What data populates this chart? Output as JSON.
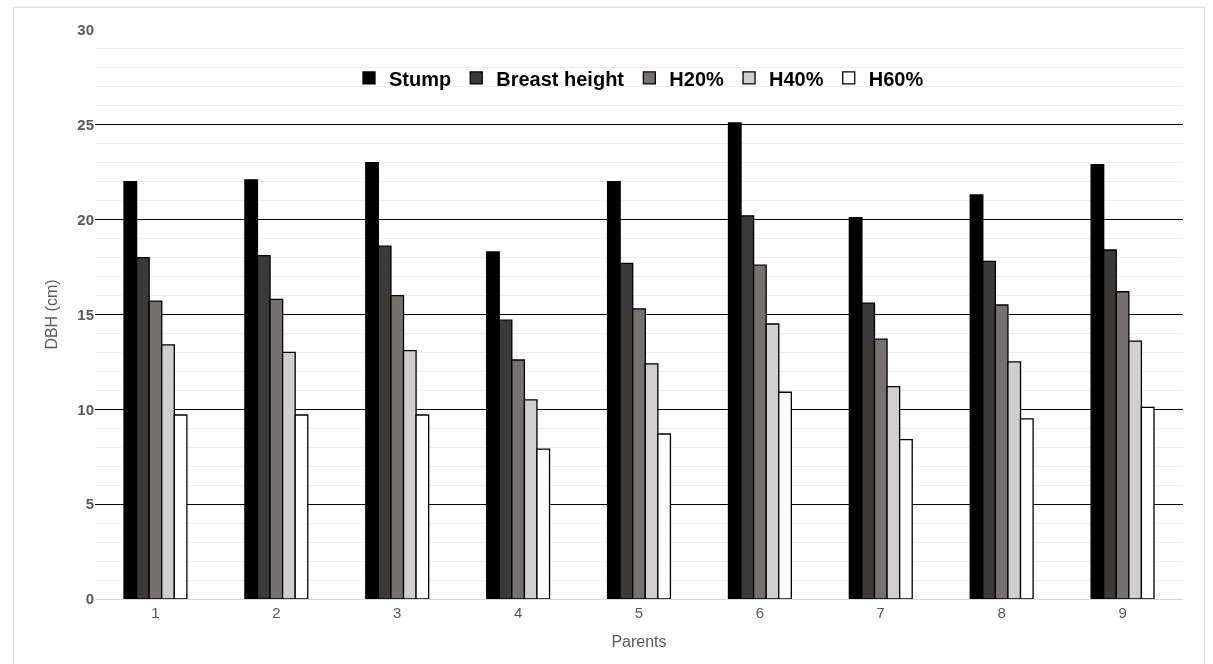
{
  "chart_data": {
    "type": "bar",
    "xlabel": "Parents",
    "ylabel": "DBH (cm)",
    "categories": [
      "1",
      "2",
      "3",
      "4",
      "5",
      "6",
      "7",
      "8",
      "9"
    ],
    "series": [
      {
        "name": "Stump",
        "color": "#000000",
        "values": [
          22.0,
          22.1,
          23.0,
          18.3,
          22.0,
          25.1,
          20.1,
          21.3,
          22.9
        ]
      },
      {
        "name": "Breast height",
        "color": "#3b3a38",
        "values": [
          18.0,
          18.1,
          18.6,
          14.7,
          17.7,
          20.2,
          15.6,
          17.8,
          18.4
        ]
      },
      {
        "name": "H20%",
        "color": "#767171",
        "values": [
          15.7,
          15.8,
          16.0,
          12.6,
          15.3,
          17.6,
          13.7,
          15.5,
          16.2
        ]
      },
      {
        "name": "H40%",
        "color": "#d0cece",
        "values": [
          13.4,
          13.0,
          13.1,
          10.5,
          12.4,
          14.5,
          11.2,
          12.5,
          13.6
        ]
      },
      {
        "name": "H60%",
        "color": "#ffffff",
        "values": [
          9.7,
          9.7,
          9.7,
          7.9,
          8.7,
          10.9,
          8.4,
          9.5,
          10.1
        ]
      }
    ],
    "ylim": [
      0,
      30
    ],
    "yticks": [
      0,
      5,
      10,
      15,
      20,
      25,
      30
    ],
    "grid": "y",
    "legend": "top"
  }
}
